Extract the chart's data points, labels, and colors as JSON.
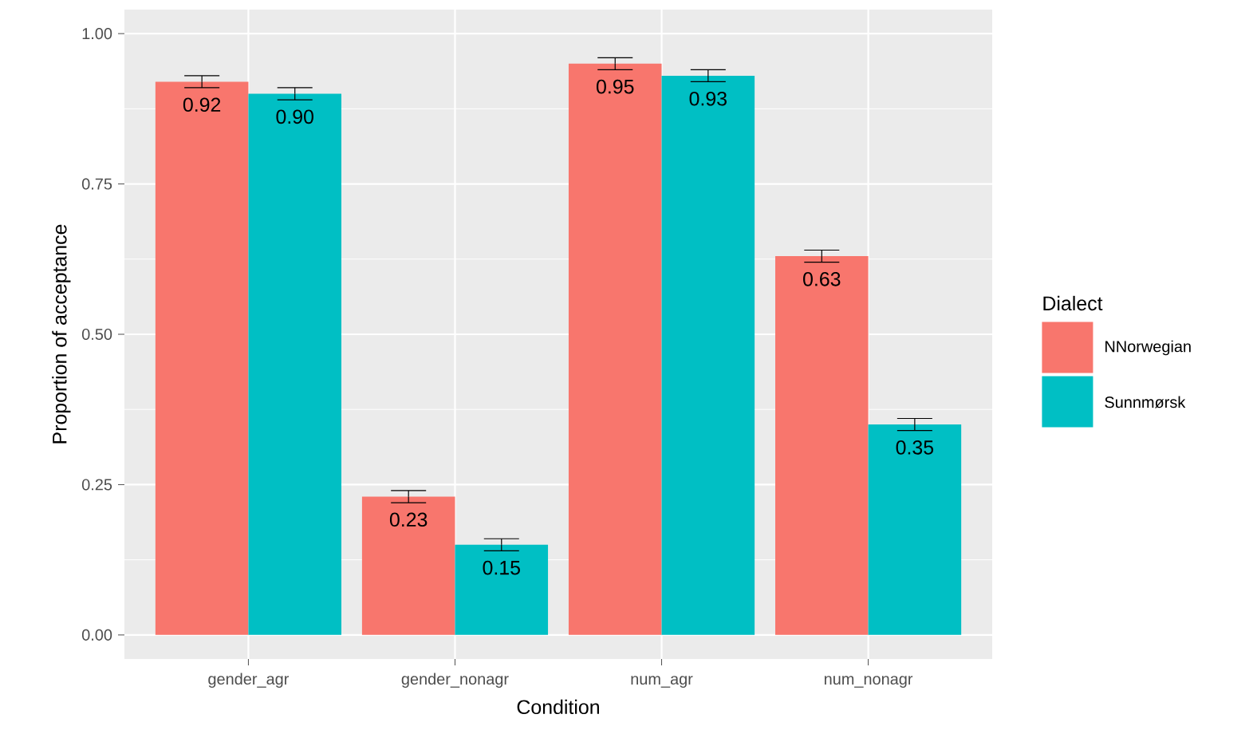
{
  "chart_data": {
    "type": "bar",
    "xlabel": "Condition",
    "ylabel": "Proportion of acceptance",
    "legend_title": "Dialect",
    "categories": [
      "gender_agr",
      "gender_nonagr",
      "num_agr",
      "num_nonagr"
    ],
    "series": [
      {
        "name": "NNorwegian",
        "color": "#f8766d",
        "values": [
          0.92,
          0.23,
          0.95,
          0.63
        ],
        "errors": [
          0.01,
          0.01,
          0.01,
          0.01
        ],
        "value_labels": [
          "0.92",
          "0.23",
          "0.95",
          "0.63"
        ]
      },
      {
        "name": "Sunnmørsk",
        "color": "#00bfc4",
        "values": [
          0.9,
          0.15,
          0.93,
          0.35
        ],
        "errors": [
          0.01,
          0.01,
          0.01,
          0.01
        ],
        "value_labels": [
          "0.90",
          "0.15",
          "0.93",
          "0.35"
        ]
      }
    ],
    "ylim": [
      0,
      1.0
    ],
    "yticks": [
      {
        "value": 0,
        "label": "0.00"
      },
      {
        "value": 0.25,
        "label": "0.25"
      },
      {
        "value": 0.5,
        "label": "0.50"
      },
      {
        "value": 0.75,
        "label": "0.75"
      },
      {
        "value": 1.0,
        "label": "1.00"
      }
    ],
    "grid": true,
    "legend": "right"
  }
}
